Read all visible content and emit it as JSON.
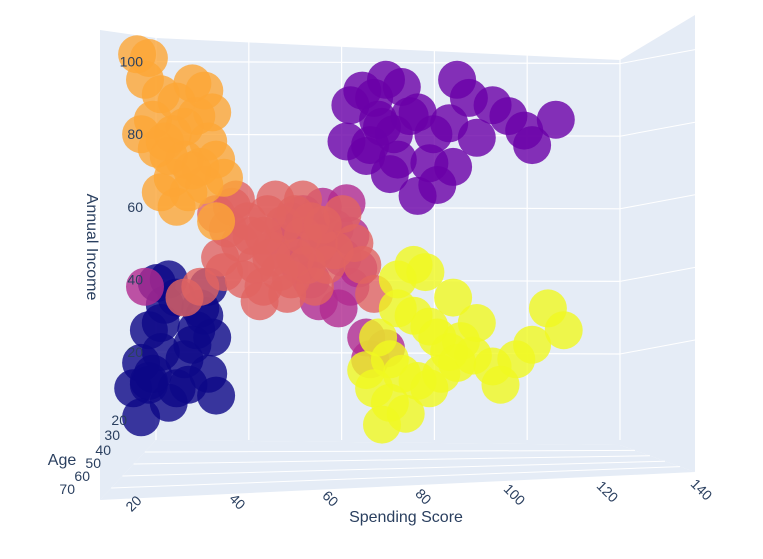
{
  "chart_data": {
    "type": "scatter3d",
    "axes": {
      "x": {
        "title": "Spending Score",
        "ticks": [
          "20",
          "40",
          "60",
          "80",
          "100",
          "120",
          "140"
        ]
      },
      "y": {
        "title": "Annual Income",
        "ticks": [
          "20",
          "40",
          "60",
          "80",
          "100"
        ]
      },
      "z": {
        "title": "Age",
        "ticks": [
          "20",
          "30",
          "40",
          "50",
          "60",
          "70"
        ]
      }
    },
    "clusters": [
      {
        "color": "#0d0887",
        "points": [
          [
            17,
            10
          ],
          [
            21,
            11
          ],
          [
            19,
            17
          ],
          [
            21,
            12
          ],
          [
            24,
            20
          ],
          [
            21,
            26
          ],
          [
            25,
            33
          ],
          [
            28,
            35
          ],
          [
            23,
            39
          ],
          [
            26,
            40
          ],
          [
            30,
            18
          ],
          [
            33,
            26
          ],
          [
            35,
            30
          ],
          [
            37,
            24
          ],
          [
            36,
            14
          ],
          [
            38,
            8
          ],
          [
            31,
            11
          ],
          [
            26,
            6
          ],
          [
            28,
            10
          ],
          [
            32,
            22
          ],
          [
            24,
            28
          ],
          [
            36,
            38
          ],
          [
            34,
            32
          ],
          [
            19,
            2
          ],
          [
            22,
            14
          ]
        ]
      },
      {
        "color": "#6a00a8",
        "points": [
          [
            71,
            78
          ],
          [
            75,
            92
          ],
          [
            78,
            90
          ],
          [
            80,
            82
          ],
          [
            76,
            74
          ],
          [
            83,
            80
          ],
          [
            85,
            93
          ],
          [
            89,
            86
          ],
          [
            93,
            80
          ],
          [
            97,
            83
          ],
          [
            99,
            95
          ],
          [
            102,
            90
          ],
          [
            108,
            88
          ],
          [
            104,
            79
          ],
          [
            98,
            71
          ],
          [
            94,
            66
          ],
          [
            89,
            63
          ],
          [
            84,
            73
          ],
          [
            79,
            84
          ],
          [
            81,
            95
          ],
          [
            72,
            88
          ],
          [
            112,
            85
          ],
          [
            116,
            81
          ],
          [
            118,
            77
          ],
          [
            124,
            84
          ],
          [
            92,
            72
          ],
          [
            87,
            85
          ],
          [
            77,
            77
          ],
          [
            82,
            69
          ]
        ]
      },
      {
        "color": "#b12a90",
        "points": [
          [
            20,
            38
          ],
          [
            62,
            40
          ],
          [
            64,
            34
          ],
          [
            69,
            32
          ],
          [
            72,
            38
          ],
          [
            76,
            24
          ],
          [
            77,
            18
          ],
          [
            81,
            21
          ],
          [
            74,
            43
          ],
          [
            70,
            46
          ],
          [
            66,
            52
          ],
          [
            60,
            58
          ],
          [
            65,
            60
          ],
          [
            71,
            61
          ],
          [
            55,
            50
          ],
          [
            59,
            44
          ],
          [
            63,
            48
          ],
          [
            68,
            54
          ],
          [
            72,
            52
          ],
          [
            57,
            56
          ]
        ]
      },
      {
        "color": "#e16462",
        "points": [
          [
            42,
            60
          ],
          [
            46,
            56
          ],
          [
            50,
            52
          ],
          [
            52,
            48
          ],
          [
            55,
            55
          ],
          [
            58,
            58
          ],
          [
            60,
            62
          ],
          [
            62,
            56
          ],
          [
            64,
            50
          ],
          [
            48,
            44
          ],
          [
            44,
            50
          ],
          [
            41,
            54
          ],
          [
            45,
            40
          ],
          [
            50,
            38
          ],
          [
            54,
            42
          ],
          [
            58,
            46
          ],
          [
            56,
            36
          ],
          [
            63,
            38
          ],
          [
            66,
            44
          ],
          [
            68,
            48
          ],
          [
            39,
            46
          ],
          [
            43,
            62
          ],
          [
            47,
            52
          ],
          [
            51,
            58
          ],
          [
            60,
            52
          ],
          [
            65,
            55
          ],
          [
            70,
            58
          ],
          [
            73,
            50
          ],
          [
            75,
            44
          ],
          [
            38,
            58
          ],
          [
            30,
            35
          ],
          [
            78,
            36
          ],
          [
            40,
            42
          ],
          [
            53,
            62
          ],
          [
            57,
            40
          ],
          [
            61,
            44
          ],
          [
            49,
            34
          ],
          [
            52,
            46
          ],
          [
            34,
            38
          ]
        ]
      },
      {
        "color": "#fca636",
        "points": [
          [
            18,
            102
          ],
          [
            21,
            101
          ],
          [
            20,
            95
          ],
          [
            24,
            91
          ],
          [
            28,
            89
          ],
          [
            32,
            94
          ],
          [
            35,
            92
          ],
          [
            37,
            86
          ],
          [
            33,
            85
          ],
          [
            30,
            82
          ],
          [
            27,
            80
          ],
          [
            22,
            84
          ],
          [
            19,
            80
          ],
          [
            23,
            76
          ],
          [
            26,
            74
          ],
          [
            30,
            73
          ],
          [
            34,
            71
          ],
          [
            38,
            73
          ],
          [
            40,
            68
          ],
          [
            35,
            66
          ],
          [
            31,
            64
          ],
          [
            27,
            68
          ],
          [
            24,
            64
          ],
          [
            28,
            60
          ],
          [
            38,
            56
          ],
          [
            32,
            70
          ],
          [
            25,
            78
          ],
          [
            36,
            78
          ]
        ]
      },
      {
        "color": "#f0f921",
        "points": [
          [
            84,
            40
          ],
          [
            88,
            44
          ],
          [
            91,
            42
          ],
          [
            84,
            32
          ],
          [
            88,
            30
          ],
          [
            92,
            27
          ],
          [
            94,
            24
          ],
          [
            97,
            20
          ],
          [
            100,
            23
          ],
          [
            103,
            19
          ],
          [
            108,
            16
          ],
          [
            114,
            18
          ],
          [
            118,
            22
          ],
          [
            122,
            32
          ],
          [
            126,
            26
          ],
          [
            79,
            24
          ],
          [
            82,
            18
          ],
          [
            85,
            14
          ],
          [
            89,
            12
          ],
          [
            92,
            10
          ],
          [
            95,
            14
          ],
          [
            99,
            17
          ],
          [
            78,
            10
          ],
          [
            82,
            6
          ],
          [
            86,
            3
          ],
          [
            80,
            0
          ],
          [
            76,
            15
          ],
          [
            110,
            11
          ],
          [
            104,
            28
          ],
          [
            98,
            35
          ]
        ]
      }
    ]
  }
}
